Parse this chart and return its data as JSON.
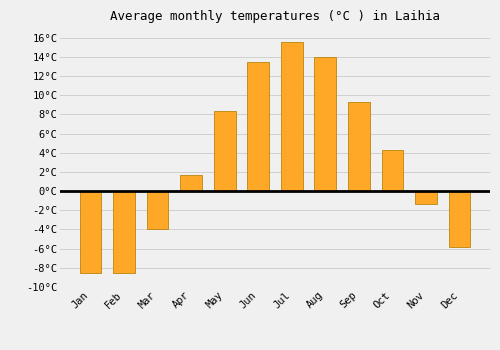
{
  "title": "Average monthly temperatures (°C ) in Laihia",
  "months": [
    "Jan",
    "Feb",
    "Mar",
    "Apr",
    "May",
    "Jun",
    "Jul",
    "Aug",
    "Sep",
    "Oct",
    "Nov",
    "Dec"
  ],
  "values": [
    -8.5,
    -8.5,
    -4.0,
    1.7,
    8.3,
    13.5,
    15.5,
    14.0,
    9.3,
    4.3,
    -1.3,
    -5.8
  ],
  "bar_color": "#FFA726",
  "bar_edge_color": "#B8860B",
  "ylim": [
    -10,
    17
  ],
  "yticks": [
    -10,
    -8,
    -6,
    -4,
    -2,
    0,
    2,
    4,
    6,
    8,
    10,
    12,
    14,
    16
  ],
  "background_color": "#f0f0f0",
  "grid_color": "#d0d0d0",
  "zero_line_color": "#000000",
  "title_fontsize": 9,
  "tick_fontsize": 7.5,
  "bar_width": 0.65
}
